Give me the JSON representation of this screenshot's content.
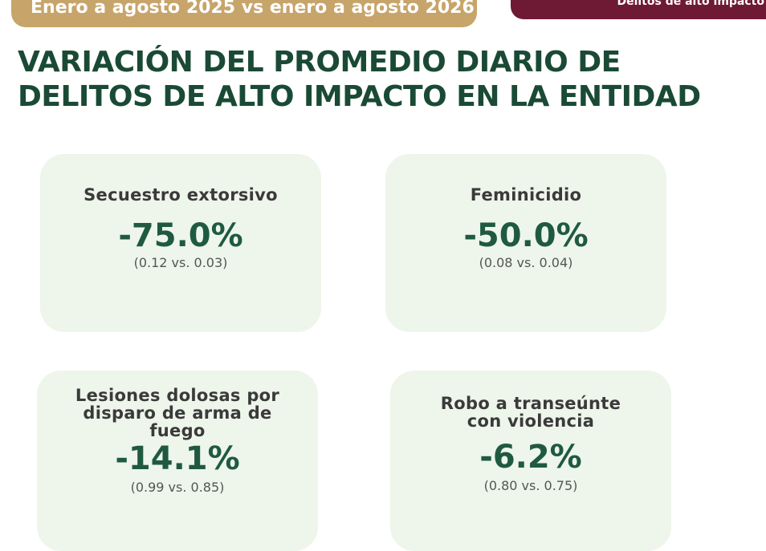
{
  "header": {
    "date_range": "Enero a agosto 2025 vs enero a agosto 2026",
    "category": "Delitos de alto impacto"
  },
  "title": "VARIACIÓN DEL PROMEDIO DIARIO DE DELITOS DE ALTO IMPACTO EN LA ENTIDAD",
  "cards": [
    {
      "label": "Secuestro extorsivo",
      "value": "-75.0%",
      "comparison": "(0.12 vs. 0.03)"
    },
    {
      "label": "Feminicidio",
      "value": "-50.0%",
      "comparison": "(0.08 vs. 0.04)"
    },
    {
      "label": "Lesiones dolosas por disparo de arma de fuego",
      "value": "-14.1%",
      "comparison": "(0.99 vs. 0.85)"
    },
    {
      "label": "Robo a transeúnte con violencia",
      "value": "-6.2%",
      "comparison": "(0.80 vs. 0.75)"
    }
  ],
  "colors": {
    "title": "#1a4a35",
    "value": "#1f5a40",
    "card_bg": "#eef5ea",
    "date_pill": "#c7a46a",
    "category_pill": "#6e1a34"
  }
}
